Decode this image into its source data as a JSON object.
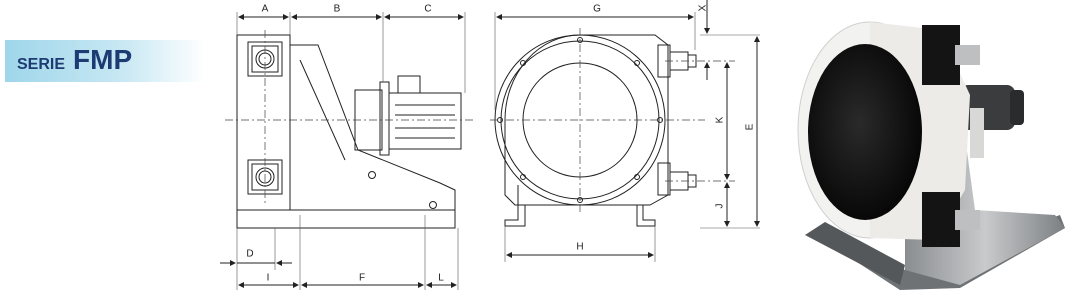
{
  "header": {
    "series_prefix": "SERIE",
    "series_name": "FMP"
  },
  "dimensions": [
    "A",
    "B",
    "C",
    "D",
    "I",
    "F",
    "L",
    "G",
    "X",
    "K",
    "E",
    "J",
    "H"
  ]
}
